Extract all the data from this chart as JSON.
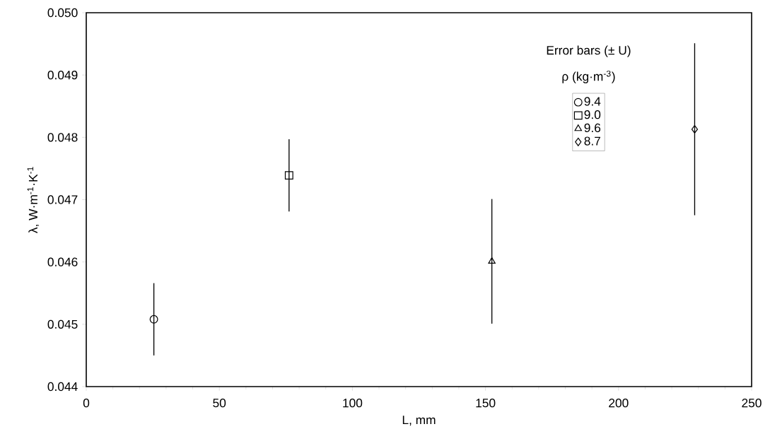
{
  "chart_data": {
    "type": "scatter",
    "xlabel": "L, mm",
    "ylabel": "λ, W·m$^{-1}$·K$^{-1}$",
    "legend_title": "ρ (kg·m$^{-3}$)",
    "annotations": [
      "Error bars (± U)"
    ],
    "xlim": [
      0,
      250
    ],
    "xticks": [
      0,
      50,
      100,
      150,
      200,
      250
    ],
    "ylim": [
      0.044,
      0.05
    ],
    "yticks": [
      {
        "value": 0.044,
        "label": "0.044"
      },
      {
        "value": 0.045,
        "label": "0.045"
      },
      {
        "value": 0.046,
        "label": "0.046"
      },
      {
        "value": 0.047,
        "label": "0.047"
      },
      {
        "value": 0.048,
        "label": "0.048"
      },
      {
        "value": 0.049,
        "label": "0.049"
      },
      {
        "value": 0.05,
        "label": "0.050"
      }
    ],
    "legend": "top right",
    "grid": false,
    "series": [
      {
        "name": "9.4",
        "color": "#000000",
        "marker": "circle",
        "x": [
          25.4
        ],
        "values": [
          0.04508
        ],
        "errors": [
          0.00058
        ]
      },
      {
        "name": "9.0",
        "color": "#000000",
        "marker": "square",
        "x": [
          76.2
        ],
        "values": [
          0.04739
        ],
        "errors": [
          0.00058
        ]
      },
      {
        "name": "9.6",
        "color": "#000000",
        "marker": "triangle",
        "x": [
          152.4
        ],
        "values": [
          0.04601
        ],
        "errors": [
          0.001
        ]
      },
      {
        "name": "8.7",
        "color": "#000000",
        "marker": "diamond",
        "x": [
          228.6
        ],
        "values": [
          0.04813
        ],
        "errors": [
          0.00138
        ]
      }
    ]
  }
}
